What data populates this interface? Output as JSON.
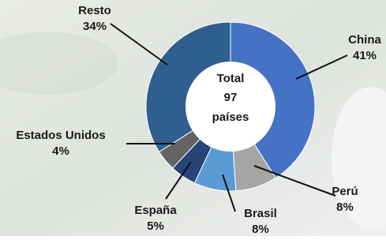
{
  "chart_data": {
    "type": "donut",
    "categories": [
      "China",
      "Perú",
      "Brasil",
      "España",
      "Estados Unidos",
      "Resto"
    ],
    "values": [
      41,
      8,
      8,
      5,
      4,
      34
    ],
    "value_labels": [
      "41%",
      "8%",
      "8%",
      "5%",
      "4%",
      "34%"
    ],
    "colors": [
      "#4472c4",
      "#a5a5a5",
      "#5b9bd5",
      "#264478",
      "#636363",
      "#2e5f8f"
    ],
    "center_text": {
      "title": "Total",
      "count": 97,
      "unit": "países"
    }
  }
}
